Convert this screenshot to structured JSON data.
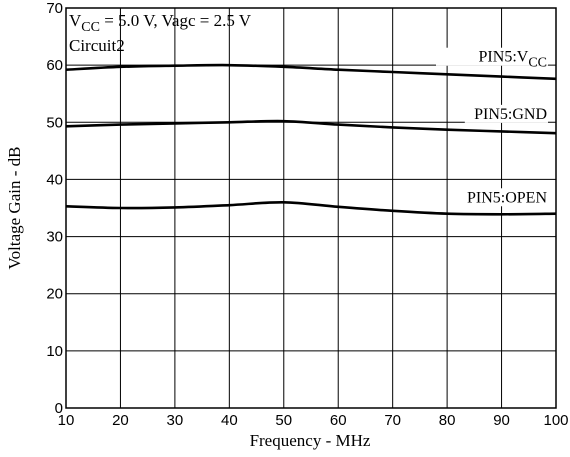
{
  "chart_data": {
    "type": "line",
    "xlabel": "Frequency - MHz",
    "ylabel": "Voltage Gain - dB",
    "xlim": [
      10,
      100
    ],
    "ylim": [
      0,
      70
    ],
    "x_ticks": [
      10,
      20,
      30,
      40,
      50,
      60,
      70,
      80,
      90,
      100
    ],
    "y_ticks": [
      0,
      10,
      20,
      30,
      40,
      50,
      60,
      70
    ],
    "grid": true,
    "annotations": {
      "conditions_prefix": "V",
      "conditions_subscript": "CC",
      "conditions_rest": " = 5.0 V, Vagc = 2.5 V",
      "circuit": "Circuit2"
    },
    "series": [
      {
        "name": "PIN5:VCC",
        "label_main": "PIN5:V",
        "label_sub": "CC",
        "color": "#000000",
        "x": [
          10,
          20,
          30,
          40,
          50,
          60,
          70,
          80,
          90,
          100
        ],
        "y": [
          59.2,
          59.7,
          59.9,
          60.0,
          59.7,
          59.2,
          58.8,
          58.4,
          58.0,
          57.6
        ]
      },
      {
        "name": "PIN5:GND",
        "label_main": "PIN5:GND",
        "label_sub": "",
        "color": "#000000",
        "x": [
          10,
          20,
          30,
          40,
          50,
          60,
          70,
          80,
          90,
          100
        ],
        "y": [
          49.3,
          49.6,
          49.8,
          50.0,
          50.2,
          49.6,
          49.1,
          48.7,
          48.4,
          48.1
        ]
      },
      {
        "name": "PIN5:OPEN",
        "label_main": "PIN5:OPEN",
        "label_sub": "",
        "color": "#000000",
        "x": [
          10,
          20,
          30,
          40,
          50,
          60,
          70,
          80,
          90,
          100
        ],
        "y": [
          35.3,
          35.0,
          35.1,
          35.5,
          36.0,
          35.2,
          34.5,
          34.0,
          33.9,
          34.0
        ]
      }
    ]
  }
}
